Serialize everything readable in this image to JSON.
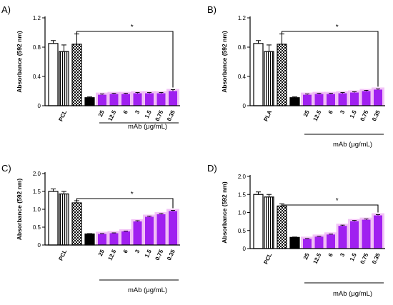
{
  "chart_data": [
    {
      "panel": "A)",
      "type": "bar",
      "ylabel": "Absorbance (592 nm)",
      "ylim": [
        0,
        1.2
      ],
      "yticks": [
        "0",
        "0.4",
        "0.8",
        "1.2"
      ],
      "control_label": "PCL",
      "group_label": "mAb (μg/mL)",
      "categories": [
        "25",
        "12.5",
        "6",
        "3",
        "1.5",
        "0.75",
        "0.35"
      ],
      "controls": [
        {
          "pattern": "white",
          "value": 0.85,
          "error": 0.04
        },
        {
          "pattern": "vertical",
          "value": 0.74,
          "error": 0.09
        },
        {
          "pattern": "checker",
          "value": 0.84,
          "error": 0.14
        },
        {
          "pattern": "black",
          "value": 0.11,
          "error": 0.01
        }
      ],
      "values": [
        0.15,
        0.16,
        0.16,
        0.17,
        0.17,
        0.17,
        0.2
      ],
      "errors": [
        0.01,
        0.01,
        0.01,
        0.01,
        0.01,
        0.01,
        0.02
      ],
      "significance": "*"
    },
    {
      "panel": "B)",
      "type": "bar",
      "ylabel": "Absorbance (592 nm)",
      "ylim": [
        0,
        1.2
      ],
      "yticks": [
        "0",
        "0.4",
        "0.8",
        "1.2"
      ],
      "control_label": "PLA",
      "group_label": "mAb (μg/mL)",
      "categories": [
        "25",
        "12.5",
        "6",
        "3",
        "1.5",
        "0.75",
        "0.35"
      ],
      "controls": [
        {
          "pattern": "white",
          "value": 0.85,
          "error": 0.04
        },
        {
          "pattern": "vertical",
          "value": 0.74,
          "error": 0.09
        },
        {
          "pattern": "checker",
          "value": 0.84,
          "error": 0.14
        },
        {
          "pattern": "black",
          "value": 0.11,
          "error": 0.01
        }
      ],
      "values": [
        0.15,
        0.16,
        0.16,
        0.17,
        0.18,
        0.2,
        0.22
      ],
      "errors": [
        0.01,
        0.01,
        0.01,
        0.01,
        0.01,
        0.01,
        0.01
      ],
      "significance": "*"
    },
    {
      "panel": "C)",
      "type": "bar",
      "ylabel": "Absorbance (592 nm)",
      "ylim": [
        0,
        2.0
      ],
      "yticks": [
        "0",
        "0.5",
        "1.0",
        "1.5",
        "2.0"
      ],
      "control_label": "PCL",
      "group_label": "mAb (μg/mL)",
      "categories": [
        "25",
        "12.5",
        "6",
        "3",
        "1.5",
        "0.75",
        "0.35"
      ],
      "controls": [
        {
          "pattern": "white",
          "value": 1.5,
          "error": 0.07
        },
        {
          "pattern": "vertical",
          "value": 1.43,
          "error": 0.07
        },
        {
          "pattern": "checker",
          "value": 1.18,
          "error": 0.06
        },
        {
          "pattern": "black",
          "value": 0.31,
          "error": 0.01
        }
      ],
      "values": [
        0.31,
        0.33,
        0.38,
        0.66,
        0.79,
        0.86,
        0.95
      ],
      "errors": [
        0.01,
        0.01,
        0.01,
        0.02,
        0.02,
        0.02,
        0.02
      ],
      "significance": "*"
    },
    {
      "panel": "D)",
      "type": "bar",
      "ylabel": "Absorbance (592 nm)",
      "ylim": [
        0,
        2.0
      ],
      "yticks": [
        "0",
        "0.5",
        "1.0",
        "1.5",
        "2.0"
      ],
      "control_label": "PCL",
      "group_label": "mAb (μg/mL)",
      "categories": [
        "25",
        "12.5",
        "6",
        "3",
        "1.5",
        "0.75",
        "0.35"
      ],
      "controls": [
        {
          "pattern": "white",
          "value": 1.5,
          "error": 0.07
        },
        {
          "pattern": "vertical",
          "value": 1.43,
          "error": 0.07
        },
        {
          "pattern": "checker",
          "value": 1.18,
          "error": 0.06
        },
        {
          "pattern": "black",
          "value": 0.31,
          "error": 0.01
        }
      ],
      "values": [
        0.27,
        0.33,
        0.39,
        0.63,
        0.76,
        0.8,
        0.92
      ],
      "errors": [
        0.01,
        0.01,
        0.01,
        0.02,
        0.02,
        0.02,
        0.02
      ],
      "significance": "*"
    }
  ],
  "colors": {
    "mab_bar": "#a020f0",
    "mab_glow": "#f0b8f4",
    "axis": "#000000"
  }
}
